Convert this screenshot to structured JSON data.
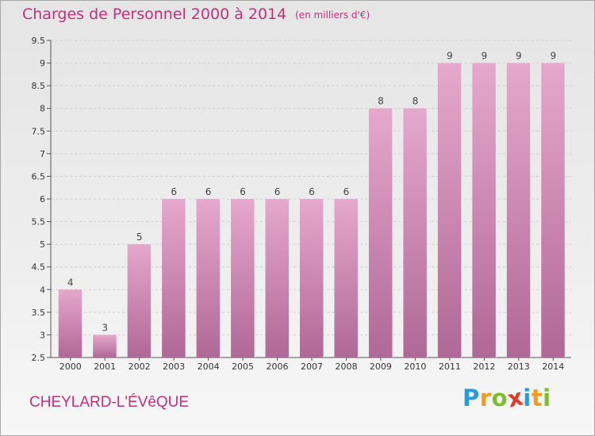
{
  "header": {
    "title": "Charges de Personnel 2000 à 2014",
    "subtitle": "(en milliers d'€)"
  },
  "footer": {
    "commune": "CHEYLARD-L'ÉVêQUE",
    "logo_letters": [
      {
        "ch": "P",
        "color": "#2a9ad8"
      },
      {
        "ch": "r",
        "color": "#f39a1a"
      },
      {
        "ch": "o",
        "color": "#7bbd2a"
      },
      {
        "ch": "x",
        "color": "#e53b25"
      },
      {
        "ch": "i",
        "color": "#2a9ad8"
      },
      {
        "ch": "t",
        "color": "#f39a1a"
      },
      {
        "ch": "i",
        "color": "#7bbd2a"
      }
    ]
  },
  "colors": {
    "accent": "#c0307c",
    "bar_top": "#e6a8cc",
    "bar_bottom": "#b06896"
  },
  "chart_data": {
    "type": "bar",
    "title": "Charges de Personnel 2000 à 2014",
    "subtitle": "(en milliers d'€)",
    "categories": [
      "2000",
      "2001",
      "2002",
      "2003",
      "2004",
      "2005",
      "2006",
      "2007",
      "2008",
      "2009",
      "2010",
      "2011",
      "2012",
      "2013",
      "2014"
    ],
    "values": [
      4,
      3,
      5,
      6,
      6,
      6,
      6,
      6,
      6,
      8,
      8,
      9,
      9,
      9,
      9
    ],
    "data_labels": [
      "4",
      "3",
      "5",
      "6",
      "6",
      "6",
      "6",
      "6",
      "6",
      "8",
      "8",
      "9",
      "9",
      "9",
      "9"
    ],
    "ylim": [
      2.5,
      9.5
    ],
    "y_ticks": [
      "2.5",
      "3",
      "3.5",
      "4",
      "4.5",
      "5",
      "5.5",
      "6",
      "6.5",
      "7",
      "7.5",
      "8",
      "8.5",
      "9",
      "9.5"
    ],
    "grid": true,
    "xlabel": "",
    "ylabel": ""
  }
}
